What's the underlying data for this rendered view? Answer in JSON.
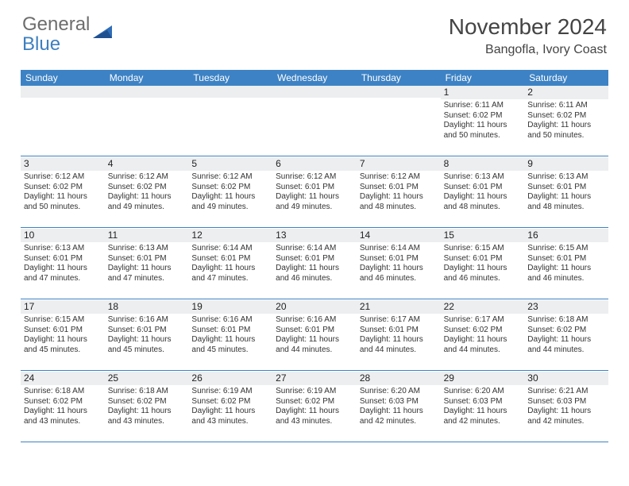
{
  "logo": {
    "gray": "General",
    "blue": "Blue"
  },
  "title": "November 2024",
  "location": "Bangofla, Ivory Coast",
  "colors": {
    "header_bar": "#3d82c4",
    "shade": "#eceef0",
    "rule": "#3d82c4",
    "logo_gray": "#6d6d6d",
    "logo_blue": "#3d7fbf",
    "text": "#333333"
  },
  "fonts": {
    "title_pt": 28,
    "location_pt": 16,
    "dow_pt": 12,
    "daynum_pt": 12,
    "body_pt": 10
  },
  "dow": [
    "Sunday",
    "Monday",
    "Tuesday",
    "Wednesday",
    "Thursday",
    "Friday",
    "Saturday"
  ],
  "weeks": [
    [
      null,
      null,
      null,
      null,
      null,
      {
        "n": "1",
        "sr": "Sunrise: 6:11 AM",
        "ss": "Sunset: 6:02 PM",
        "dl": "Daylight: 11 hours and 50 minutes."
      },
      {
        "n": "2",
        "sr": "Sunrise: 6:11 AM",
        "ss": "Sunset: 6:02 PM",
        "dl": "Daylight: 11 hours and 50 minutes."
      }
    ],
    [
      {
        "n": "3",
        "sr": "Sunrise: 6:12 AM",
        "ss": "Sunset: 6:02 PM",
        "dl": "Daylight: 11 hours and 50 minutes."
      },
      {
        "n": "4",
        "sr": "Sunrise: 6:12 AM",
        "ss": "Sunset: 6:02 PM",
        "dl": "Daylight: 11 hours and 49 minutes."
      },
      {
        "n": "5",
        "sr": "Sunrise: 6:12 AM",
        "ss": "Sunset: 6:02 PM",
        "dl": "Daylight: 11 hours and 49 minutes."
      },
      {
        "n": "6",
        "sr": "Sunrise: 6:12 AM",
        "ss": "Sunset: 6:01 PM",
        "dl": "Daylight: 11 hours and 49 minutes."
      },
      {
        "n": "7",
        "sr": "Sunrise: 6:12 AM",
        "ss": "Sunset: 6:01 PM",
        "dl": "Daylight: 11 hours and 48 minutes."
      },
      {
        "n": "8",
        "sr": "Sunrise: 6:13 AM",
        "ss": "Sunset: 6:01 PM",
        "dl": "Daylight: 11 hours and 48 minutes."
      },
      {
        "n": "9",
        "sr": "Sunrise: 6:13 AM",
        "ss": "Sunset: 6:01 PM",
        "dl": "Daylight: 11 hours and 48 minutes."
      }
    ],
    [
      {
        "n": "10",
        "sr": "Sunrise: 6:13 AM",
        "ss": "Sunset: 6:01 PM",
        "dl": "Daylight: 11 hours and 47 minutes."
      },
      {
        "n": "11",
        "sr": "Sunrise: 6:13 AM",
        "ss": "Sunset: 6:01 PM",
        "dl": "Daylight: 11 hours and 47 minutes."
      },
      {
        "n": "12",
        "sr": "Sunrise: 6:14 AM",
        "ss": "Sunset: 6:01 PM",
        "dl": "Daylight: 11 hours and 47 minutes."
      },
      {
        "n": "13",
        "sr": "Sunrise: 6:14 AM",
        "ss": "Sunset: 6:01 PM",
        "dl": "Daylight: 11 hours and 46 minutes."
      },
      {
        "n": "14",
        "sr": "Sunrise: 6:14 AM",
        "ss": "Sunset: 6:01 PM",
        "dl": "Daylight: 11 hours and 46 minutes."
      },
      {
        "n": "15",
        "sr": "Sunrise: 6:15 AM",
        "ss": "Sunset: 6:01 PM",
        "dl": "Daylight: 11 hours and 46 minutes."
      },
      {
        "n": "16",
        "sr": "Sunrise: 6:15 AM",
        "ss": "Sunset: 6:01 PM",
        "dl": "Daylight: 11 hours and 46 minutes."
      }
    ],
    [
      {
        "n": "17",
        "sr": "Sunrise: 6:15 AM",
        "ss": "Sunset: 6:01 PM",
        "dl": "Daylight: 11 hours and 45 minutes."
      },
      {
        "n": "18",
        "sr": "Sunrise: 6:16 AM",
        "ss": "Sunset: 6:01 PM",
        "dl": "Daylight: 11 hours and 45 minutes."
      },
      {
        "n": "19",
        "sr": "Sunrise: 6:16 AM",
        "ss": "Sunset: 6:01 PM",
        "dl": "Daylight: 11 hours and 45 minutes."
      },
      {
        "n": "20",
        "sr": "Sunrise: 6:16 AM",
        "ss": "Sunset: 6:01 PM",
        "dl": "Daylight: 11 hours and 44 minutes."
      },
      {
        "n": "21",
        "sr": "Sunrise: 6:17 AM",
        "ss": "Sunset: 6:01 PM",
        "dl": "Daylight: 11 hours and 44 minutes."
      },
      {
        "n": "22",
        "sr": "Sunrise: 6:17 AM",
        "ss": "Sunset: 6:02 PM",
        "dl": "Daylight: 11 hours and 44 minutes."
      },
      {
        "n": "23",
        "sr": "Sunrise: 6:18 AM",
        "ss": "Sunset: 6:02 PM",
        "dl": "Daylight: 11 hours and 44 minutes."
      }
    ],
    [
      {
        "n": "24",
        "sr": "Sunrise: 6:18 AM",
        "ss": "Sunset: 6:02 PM",
        "dl": "Daylight: 11 hours and 43 minutes."
      },
      {
        "n": "25",
        "sr": "Sunrise: 6:18 AM",
        "ss": "Sunset: 6:02 PM",
        "dl": "Daylight: 11 hours and 43 minutes."
      },
      {
        "n": "26",
        "sr": "Sunrise: 6:19 AM",
        "ss": "Sunset: 6:02 PM",
        "dl": "Daylight: 11 hours and 43 minutes."
      },
      {
        "n": "27",
        "sr": "Sunrise: 6:19 AM",
        "ss": "Sunset: 6:02 PM",
        "dl": "Daylight: 11 hours and 43 minutes."
      },
      {
        "n": "28",
        "sr": "Sunrise: 6:20 AM",
        "ss": "Sunset: 6:03 PM",
        "dl": "Daylight: 11 hours and 42 minutes."
      },
      {
        "n": "29",
        "sr": "Sunrise: 6:20 AM",
        "ss": "Sunset: 6:03 PM",
        "dl": "Daylight: 11 hours and 42 minutes."
      },
      {
        "n": "30",
        "sr": "Sunrise: 6:21 AM",
        "ss": "Sunset: 6:03 PM",
        "dl": "Daylight: 11 hours and 42 minutes."
      }
    ]
  ]
}
